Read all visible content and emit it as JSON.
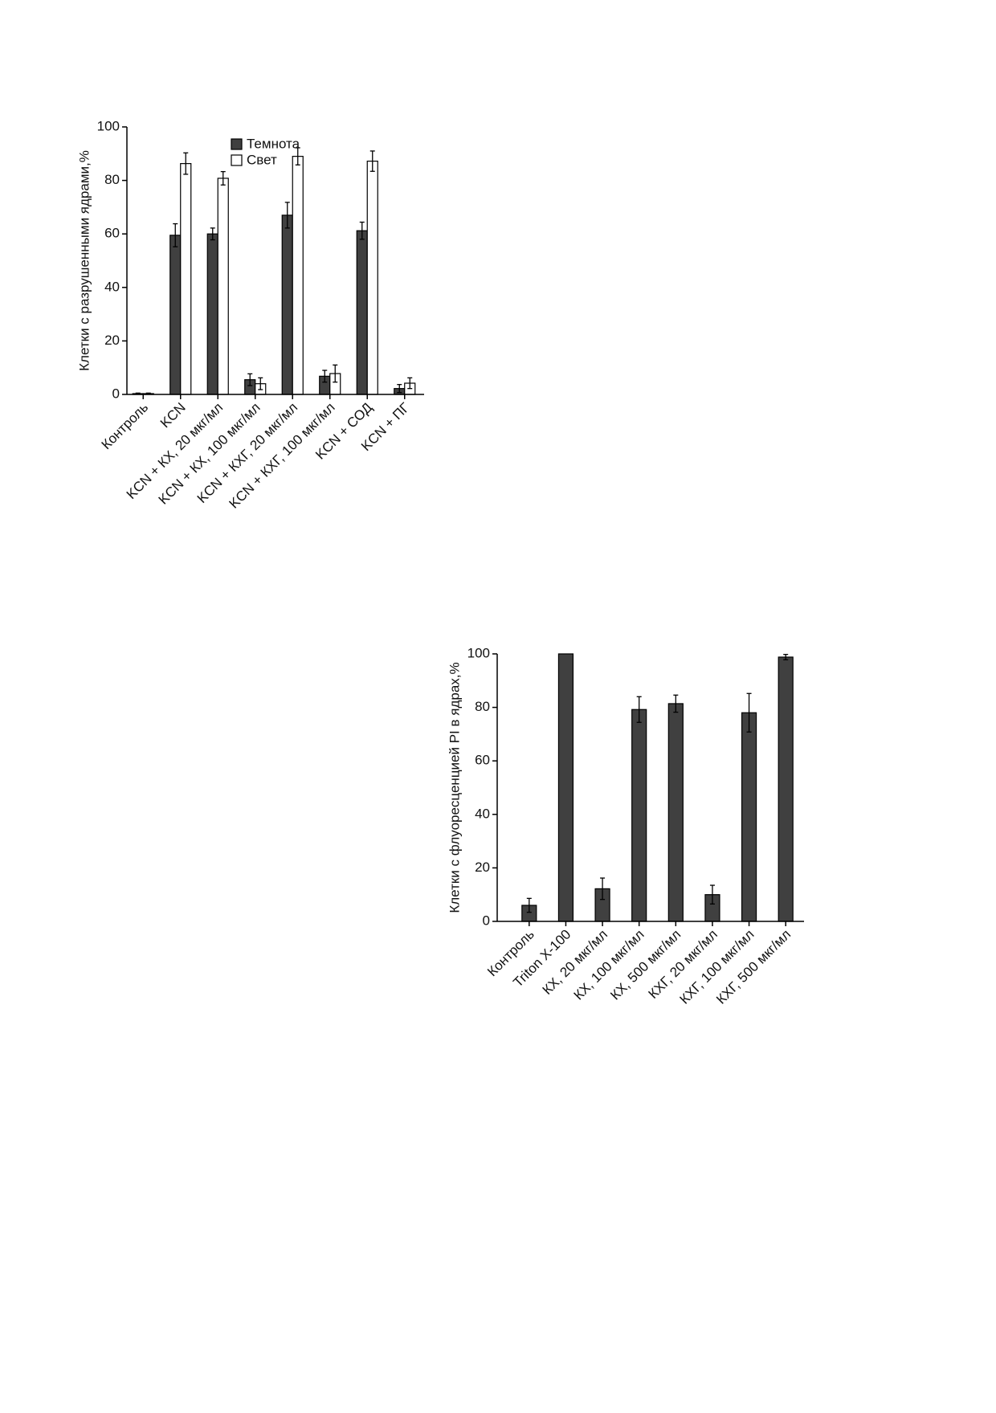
{
  "chart_data": [
    {
      "type": "bar",
      "y_label": "Клетки с разрушенными ядрами,%",
      "categories": [
        "Контроль",
        "KCN",
        "KCN + КХ, 20 мкг/мл",
        "KCN + КХ, 100 мкг/мл",
        "KCN + КХГ, 20 мкг/мл",
        "KCN + КХГ, 100 мкг/мл",
        "KCN + СОД",
        "KCN + ПГ"
      ],
      "series": [
        {
          "name": "Темнота",
          "color": "#404040",
          "values": [
            0.3,
            59.5,
            60,
            5.5,
            67,
            6.8,
            61.2,
            2.2
          ],
          "errors": [
            0.2,
            4.3,
            2.2,
            2.2,
            4.8,
            2.2,
            3.2,
            1.5
          ]
        },
        {
          "name": "Свет",
          "color": "#ffffff",
          "values": [
            0.3,
            86.3,
            80.8,
            4,
            89,
            7.8,
            87.2,
            4.2
          ],
          "errors": [
            0.2,
            4,
            2.5,
            2.2,
            3.2,
            3.2,
            3.8,
            2
          ]
        }
      ],
      "ylim": [
        0,
        100
      ],
      "yticks": [
        0,
        20,
        40,
        60,
        80,
        100
      ],
      "legend": "top"
    },
    {
      "type": "bar",
      "y_label": "Клетки с флуоресценцией PI в ядрах,%",
      "categories": [
        "Контроль",
        "Triton X-100",
        "КХ, 20 мкг/мл",
        "КХ, 100 мкг/мл",
        "КХ, 500 мкг/мл",
        "КХГ, 20 мкг/мл",
        "КХГ, 100 мкг/мл",
        "КХГ, 500 мкг/мл"
      ],
      "series": [
        {
          "color": "#404040",
          "values": [
            6,
            100,
            12.2,
            79.2,
            81.4,
            10,
            78,
            98.8
          ],
          "errors": [
            2.6,
            null,
            4,
            4.8,
            3.2,
            3.5,
            7.2,
            1
          ]
        }
      ],
      "ylim": [
        0,
        100
      ],
      "yticks": [
        0,
        20,
        40,
        60,
        80,
        100
      ]
    }
  ]
}
